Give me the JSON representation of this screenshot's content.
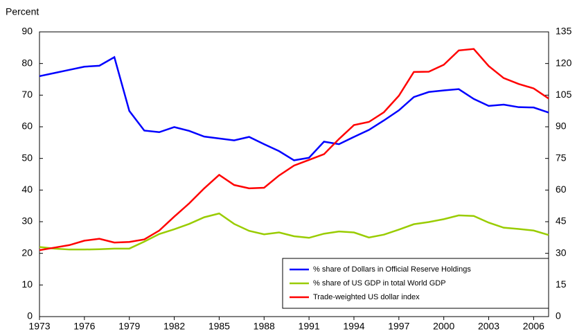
{
  "chart_data": {
    "type": "line",
    "ylabel": "Percent",
    "x": [
      1973,
      1974,
      1975,
      1976,
      1977,
      1978,
      1979,
      1980,
      1981,
      1982,
      1983,
      1984,
      1985,
      1986,
      1987,
      1988,
      1989,
      1990,
      1991,
      1992,
      1993,
      1994,
      1995,
      1996,
      1997,
      1998,
      1999,
      2000,
      2001,
      2002,
      2003,
      2004,
      2005,
      2006,
      2007
    ],
    "series": [
      {
        "name": "% share of Dollars in Official Reserve Holdings",
        "color": "#0000ff",
        "values": [
          76,
          77,
          78,
          79,
          79.3,
          82,
          65,
          58.8,
          58.3,
          59.9,
          58.7,
          56.9,
          56.3,
          55.7,
          56.8,
          54.5,
          52.3,
          49.4,
          50.2,
          55.3,
          54.5,
          56.8,
          59.0,
          62.0,
          65.2,
          69.4,
          71.0,
          71.5,
          71.9,
          68.8,
          66.6,
          67.0,
          66.2,
          66.1,
          64.5
        ]
      },
      {
        "name": "% share of US GDP in total World GDP",
        "color": "#99cc00",
        "values": [
          22,
          21.5,
          21.2,
          21.2,
          21.3,
          21.5,
          21.5,
          23.7,
          26.1,
          27.6,
          29.3,
          31.4,
          32.6,
          29.3,
          27.1,
          26.0,
          26.6,
          25.4,
          24.9,
          26.2,
          26.9,
          26.6,
          25.0,
          25.9,
          27.5,
          29.2,
          29.9,
          30.8,
          32.0,
          31.8,
          29.7,
          28.1,
          27.7,
          27.2,
          25.8
        ]
      },
      {
        "name": "Trade-weighted US dollar index",
        "color": "#ff0000",
        "axis": "y2",
        "values": [
          31.5,
          32.7,
          33.9,
          36,
          36.9,
          35.1,
          35.4,
          36.6,
          40.8,
          47.4,
          53.7,
          60.8,
          67.2,
          62.4,
          60.8,
          61.1,
          66.9,
          71.6,
          74.3,
          77,
          84.2,
          90.8,
          92.3,
          96.9,
          104.7,
          116,
          116.1,
          119.4,
          126.2,
          126.9,
          118.8,
          113.1,
          110.3,
          108.2,
          103.4
        ]
      }
    ],
    "xlim": [
      1973,
      2007
    ],
    "xticks": [
      1973,
      1976,
      1979,
      1982,
      1985,
      1988,
      1991,
      1994,
      1997,
      2000,
      2003,
      2006
    ],
    "ylim": [
      0,
      90
    ],
    "yticks": [
      0,
      10,
      20,
      30,
      40,
      50,
      60,
      70,
      80,
      90
    ],
    "y2lim": [
      0,
      135
    ],
    "y2ticks": [
      0,
      15,
      30,
      45,
      60,
      75,
      90,
      105,
      120,
      135
    ],
    "grid": false,
    "legend": "lower right"
  }
}
